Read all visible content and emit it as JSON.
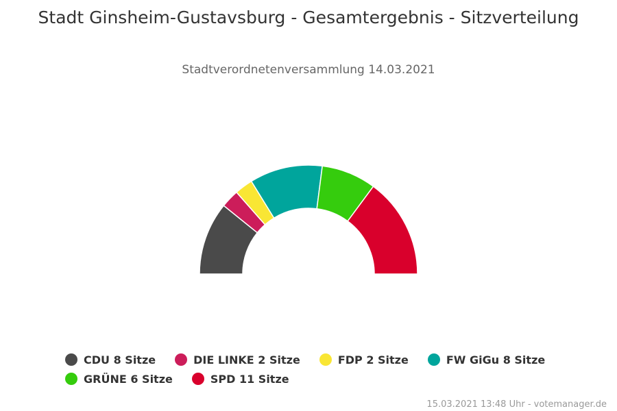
{
  "chart_data": {
    "type": "pie",
    "variant": "semi-donut",
    "title": "Stadt Ginsheim-Gustavsburg - Gesamtergebnis - Sitzverteilung",
    "subtitle": "Stadtverordnetenversammlung 14.03.2021",
    "series": [
      {
        "name": "CDU",
        "value": 8,
        "label": "CDU 8 Sitze",
        "color": "#4a4a4a"
      },
      {
        "name": "DIE LINKE",
        "value": 2,
        "label": "DIE LINKE 2 Sitze",
        "color": "#cc1d5a"
      },
      {
        "name": "FDP",
        "value": 2,
        "label": "FDP 2 Sitze",
        "color": "#f9e634"
      },
      {
        "name": "FW GiGu",
        "value": 8,
        "label": "FW GiGu 8 Sitze",
        "color": "#00a59c"
      },
      {
        "name": "GRÜNE",
        "value": 6,
        "label": "GRÜNE 6 Sitze",
        "color": "#35cc0d"
      },
      {
        "name": "SPD",
        "value": 11,
        "label": "SPD 11 Sitze",
        "color": "#d9002c"
      }
    ],
    "legend_position": "bottom"
  },
  "footer": "15.03.2021 13:48 Uhr - votemanager.de"
}
